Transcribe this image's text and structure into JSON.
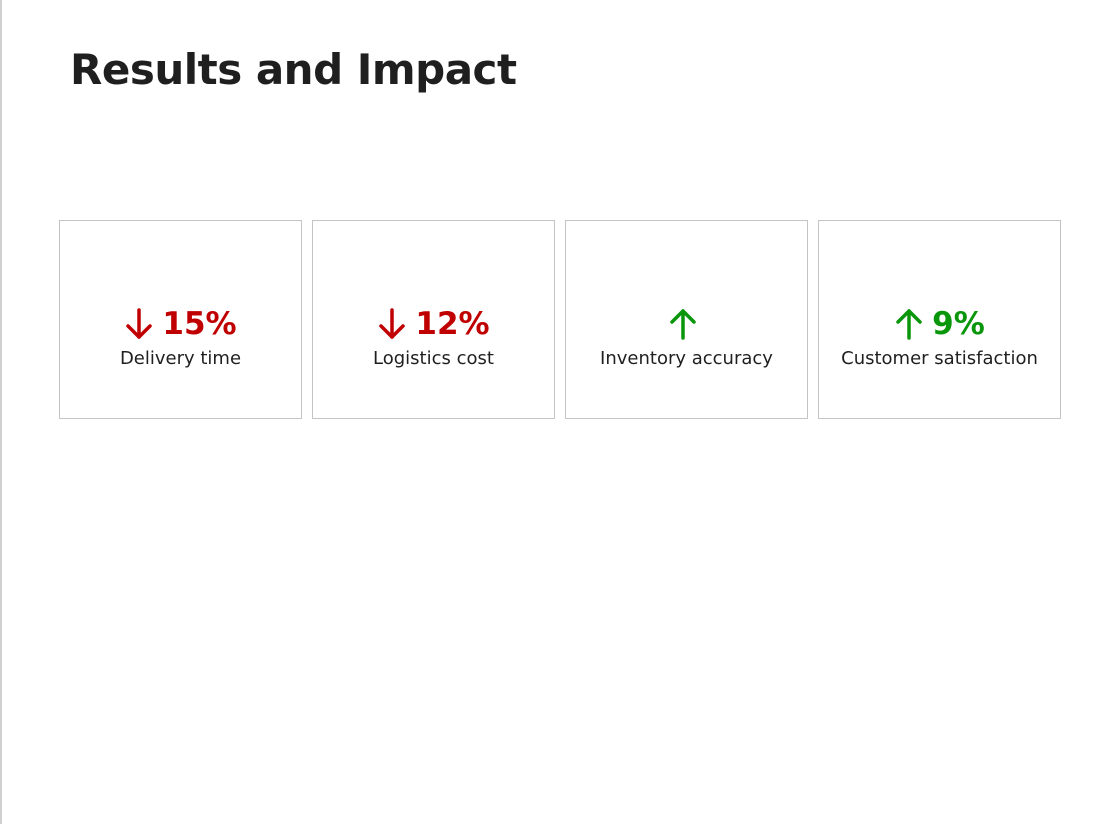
{
  "slide": {
    "title": "Results and Impact"
  },
  "colors": {
    "decrease": "#c00000",
    "increase": "#0a960a",
    "title_text": "#1f1f1f",
    "card_border": "#c4c4c4"
  },
  "metrics": [
    {
      "direction": "down",
      "icon": "arrow-down-icon",
      "value": "15%",
      "label": "Delivery time"
    },
    {
      "direction": "down",
      "icon": "arrow-down-icon",
      "value": "12%",
      "label": "Logistics cost"
    },
    {
      "direction": "up",
      "icon": "arrow-up-icon",
      "value": "",
      "label": "Inventory accuracy"
    },
    {
      "direction": "up",
      "icon": "arrow-up-icon",
      "value": "9%",
      "label": "Customer satisfaction"
    }
  ]
}
